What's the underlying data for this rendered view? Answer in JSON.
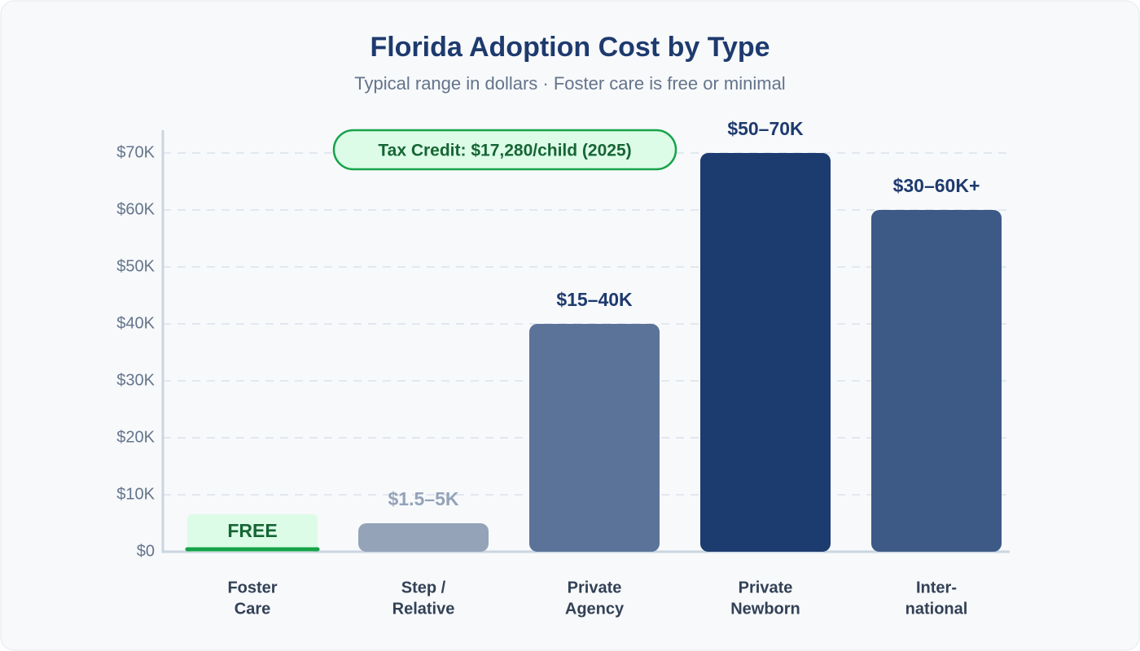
{
  "chart_data": {
    "type": "bar",
    "title": "Florida Adoption Cost by Type",
    "subtitle": "Typical range in dollars · Foster care is free or minimal",
    "annotation": "Tax Credit: $17,280/child (2025)",
    "categories": [
      [
        "Foster",
        "Care"
      ],
      [
        "Step /",
        "Relative"
      ],
      [
        "Private",
        "Agency"
      ],
      [
        "Private",
        "Newborn"
      ],
      [
        "Inter-",
        "national"
      ]
    ],
    "values": [
      0,
      5000,
      40000,
      70000,
      60000
    ],
    "value_labels": [
      "FREE",
      "$1.5–5K",
      "$15–40K",
      "$50–70K",
      "$30–60K+"
    ],
    "colors": [
      "#16a34a",
      "#94a3b8",
      "#5b7399",
      "#1c3c70",
      "#3d5a87"
    ],
    "ylim": [
      0,
      74000
    ],
    "yticks": [
      {
        "value": 0,
        "label": "$0"
      },
      {
        "value": 10000,
        "label": "$10K"
      },
      {
        "value": 20000,
        "label": "$20K"
      },
      {
        "value": 30000,
        "label": "$30K"
      },
      {
        "value": 40000,
        "label": "$40K"
      },
      {
        "value": 50000,
        "label": "$50K"
      },
      {
        "value": 60000,
        "label": "$60K"
      },
      {
        "value": 70000,
        "label": "$70K"
      }
    ],
    "grid": true
  }
}
